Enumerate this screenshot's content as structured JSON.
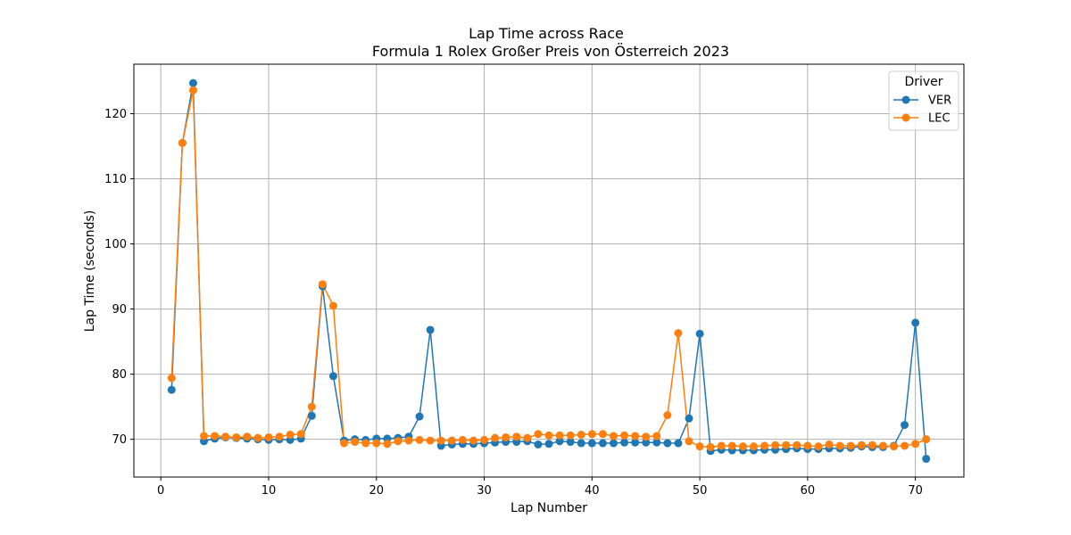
{
  "chart_data": {
    "type": "line",
    "title": "Lap Time across Race",
    "subtitle": "Formula 1 Rolex Großer Preis von Österreich 2023",
    "xlabel": "Lap Number",
    "ylabel": "Lap Time (seconds)",
    "xlim": [
      -2.5,
      74.5
    ],
    "ylim": [
      64.2,
      127.6
    ],
    "xticks": [
      0,
      10,
      20,
      30,
      40,
      50,
      60,
      70
    ],
    "yticks": [
      70,
      80,
      90,
      100,
      110,
      120
    ],
    "grid": true,
    "legend": {
      "title": "Driver",
      "position": "top-right"
    },
    "x": [
      1,
      2,
      3,
      4,
      5,
      6,
      7,
      8,
      9,
      10,
      11,
      12,
      13,
      14,
      15,
      16,
      17,
      18,
      19,
      20,
      21,
      22,
      23,
      24,
      25,
      26,
      27,
      28,
      29,
      30,
      31,
      32,
      33,
      34,
      35,
      36,
      37,
      38,
      39,
      40,
      41,
      42,
      43,
      44,
      45,
      46,
      47,
      48,
      49,
      50,
      51,
      52,
      53,
      54,
      55,
      56,
      57,
      58,
      59,
      60,
      61,
      62,
      63,
      64,
      65,
      66,
      67,
      68,
      69,
      70,
      71
    ],
    "series": [
      {
        "name": "VER",
        "color": "#1f77b4",
        "values": [
          77.6,
          115.5,
          124.7,
          69.7,
          70.1,
          70.3,
          70.2,
          70.1,
          70.0,
          69.9,
          70.0,
          69.9,
          70.1,
          73.6,
          93.5,
          79.7,
          69.8,
          70.0,
          69.9,
          70.1,
          70.1,
          70.2,
          70.4,
          73.5,
          86.8,
          69.0,
          69.2,
          69.3,
          69.3,
          69.4,
          69.5,
          69.6,
          69.6,
          69.7,
          69.2,
          69.3,
          69.7,
          69.6,
          69.4,
          69.4,
          69.4,
          69.4,
          69.5,
          69.5,
          69.5,
          69.5,
          69.4,
          69.4,
          73.2,
          86.2,
          68.2,
          68.4,
          68.3,
          68.3,
          68.3,
          68.4,
          68.4,
          68.5,
          68.6,
          68.5,
          68.5,
          68.6,
          68.6,
          68.7,
          68.9,
          68.8,
          68.8,
          69.0,
          72.2,
          87.9,
          67.0
        ]
      },
      {
        "name": "LEC",
        "color": "#ff7f0e",
        "values": [
          79.4,
          115.5,
          123.6,
          70.5,
          70.5,
          70.4,
          70.3,
          70.4,
          70.2,
          70.3,
          70.4,
          70.7,
          70.8,
          75.0,
          93.8,
          90.5,
          69.4,
          69.6,
          69.4,
          69.4,
          69.3,
          69.7,
          69.8,
          69.9,
          69.8,
          69.8,
          69.8,
          69.9,
          69.8,
          69.9,
          70.2,
          70.3,
          70.4,
          70.2,
          70.8,
          70.6,
          70.6,
          70.6,
          70.7,
          70.8,
          70.8,
          70.5,
          70.6,
          70.5,
          70.4,
          70.5,
          73.7,
          86.3,
          69.7,
          68.9,
          68.8,
          69.0,
          69.0,
          68.9,
          68.9,
          69.0,
          69.1,
          69.1,
          69.1,
          69.0,
          68.9,
          69.2,
          69.0,
          69.0,
          69.1,
          69.1,
          69.0,
          68.9,
          69.0,
          69.3,
          70.0
        ]
      }
    ]
  }
}
